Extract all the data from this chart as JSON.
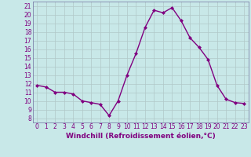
{
  "x": [
    0,
    1,
    2,
    3,
    4,
    5,
    6,
    7,
    8,
    9,
    10,
    11,
    12,
    13,
    14,
    15,
    16,
    17,
    18,
    19,
    20,
    21,
    22,
    23
  ],
  "y": [
    11.8,
    11.6,
    11.0,
    11.0,
    10.8,
    10.0,
    9.8,
    9.6,
    8.3,
    10.0,
    13.0,
    15.5,
    18.5,
    20.5,
    20.2,
    20.8,
    19.3,
    17.3,
    16.2,
    14.8,
    11.8,
    10.2,
    9.8,
    9.7
  ],
  "line_color": "#800080",
  "marker": "D",
  "marker_size": 2.0,
  "line_width": 1.0,
  "bg_color": "#c8e8e8",
  "grid_color": "#b0c8c8",
  "xlabel": "Windchill (Refroidissement éolien,°C)",
  "xlabel_color": "#800080",
  "xlabel_fontsize": 6.5,
  "tick_color": "#800080",
  "tick_fontsize": 5.5,
  "ylim": [
    7.5,
    21.5
  ],
  "xlim": [
    -0.5,
    23.5
  ],
  "yticks": [
    8,
    9,
    10,
    11,
    12,
    13,
    14,
    15,
    16,
    17,
    18,
    19,
    20,
    21
  ],
  "xticks": [
    0,
    1,
    2,
    3,
    4,
    5,
    6,
    7,
    8,
    9,
    10,
    11,
    12,
    13,
    14,
    15,
    16,
    17,
    18,
    19,
    20,
    21,
    22,
    23
  ],
  "border_color": "#7070a0",
  "bottom_bar_color": "#8888bb"
}
